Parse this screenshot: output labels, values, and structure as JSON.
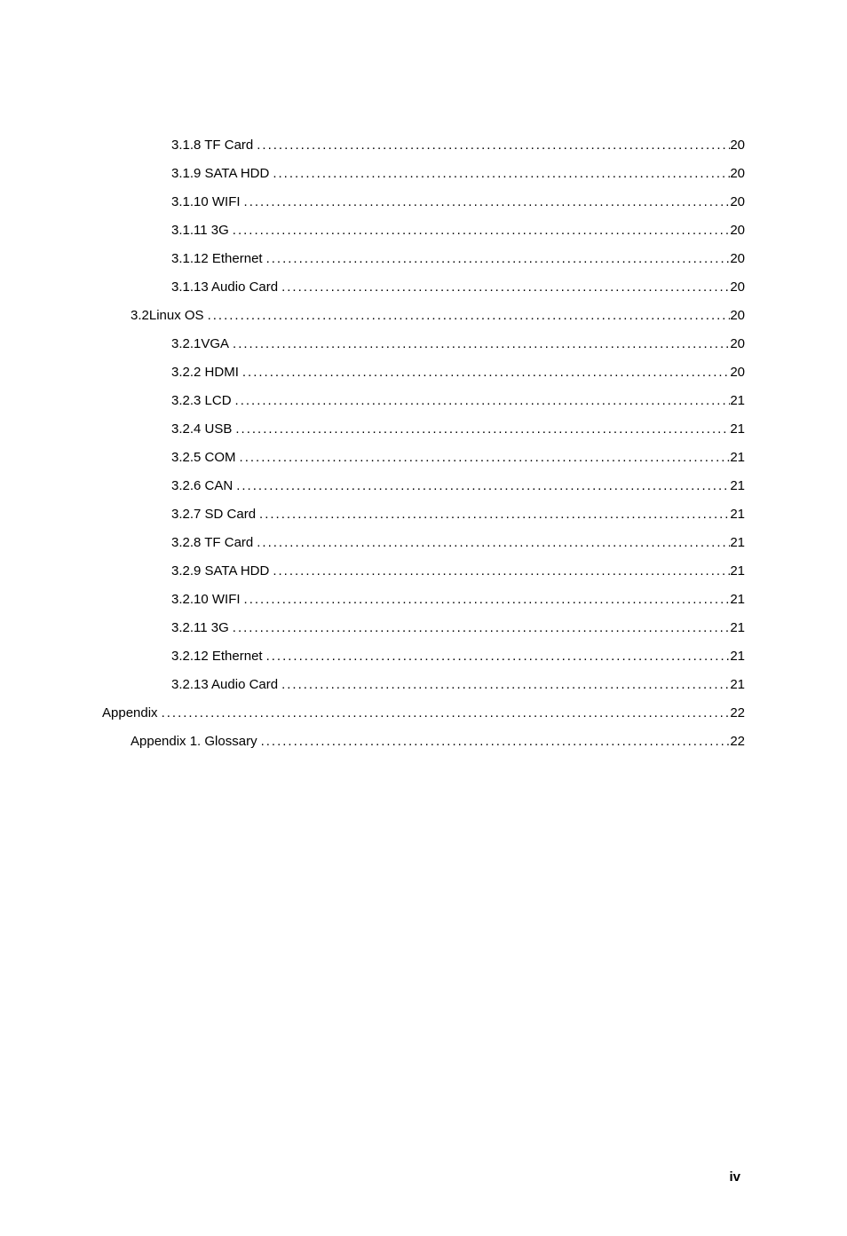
{
  "toc": {
    "entries": [
      {
        "level": 2,
        "title": "3.1.8 TF Card",
        "page": "20"
      },
      {
        "level": 2,
        "title": "3.1.9 SATA HDD ",
        "page": "20"
      },
      {
        "level": 2,
        "title": "3.1.10 WIFI ",
        "page": "20"
      },
      {
        "level": 2,
        "title": "3.1.11 3G ",
        "page": "20"
      },
      {
        "level": 2,
        "title": "3.1.12 Ethernet ",
        "page": "20"
      },
      {
        "level": 2,
        "title": "3.1.13 Audio Card ",
        "page": "20"
      },
      {
        "level": 1,
        "title": "3.2Linux OS ",
        "page": "20"
      },
      {
        "level": 2,
        "title": "3.2.1VGA ",
        "page": "20"
      },
      {
        "level": 2,
        "title": "3.2.2 HDMI  ",
        "page": "20"
      },
      {
        "level": 2,
        "title": "3.2.3 LCD ",
        "page": "21"
      },
      {
        "level": 2,
        "title": "3.2.4 USB ",
        "page": "21"
      },
      {
        "level": 2,
        "title": "3.2.5 COM ",
        "page": "21"
      },
      {
        "level": 2,
        "title": "3.2.6 CAN ",
        "page": "21"
      },
      {
        "level": 2,
        "title": "3.2.7 SD Card ",
        "page": "21"
      },
      {
        "level": 2,
        "title": "3.2.8 TF Card",
        "page": "21"
      },
      {
        "level": 2,
        "title": "3.2.9 SATA HDD ",
        "page": "21"
      },
      {
        "level": 2,
        "title": "3.2.10 WIFI ",
        "page": "21"
      },
      {
        "level": 2,
        "title": "3.2.11 3G ",
        "page": "21"
      },
      {
        "level": 2,
        "title": "3.2.12 Ethernet ",
        "page": "21"
      },
      {
        "level": 2,
        "title": "3.2.13 Audio Card ",
        "page": "21"
      },
      {
        "level": 0,
        "title": "Appendix ",
        "page": "22"
      },
      {
        "level": 1,
        "title": "Appendix 1. Glossary ",
        "page": "22"
      }
    ]
  },
  "page_label": "iv",
  "colors": {
    "text": "#000000",
    "background": "#ffffff"
  },
  "typography": {
    "body_fontsize": 15,
    "page_number_fontsize": 15,
    "page_number_weight": "bold"
  }
}
